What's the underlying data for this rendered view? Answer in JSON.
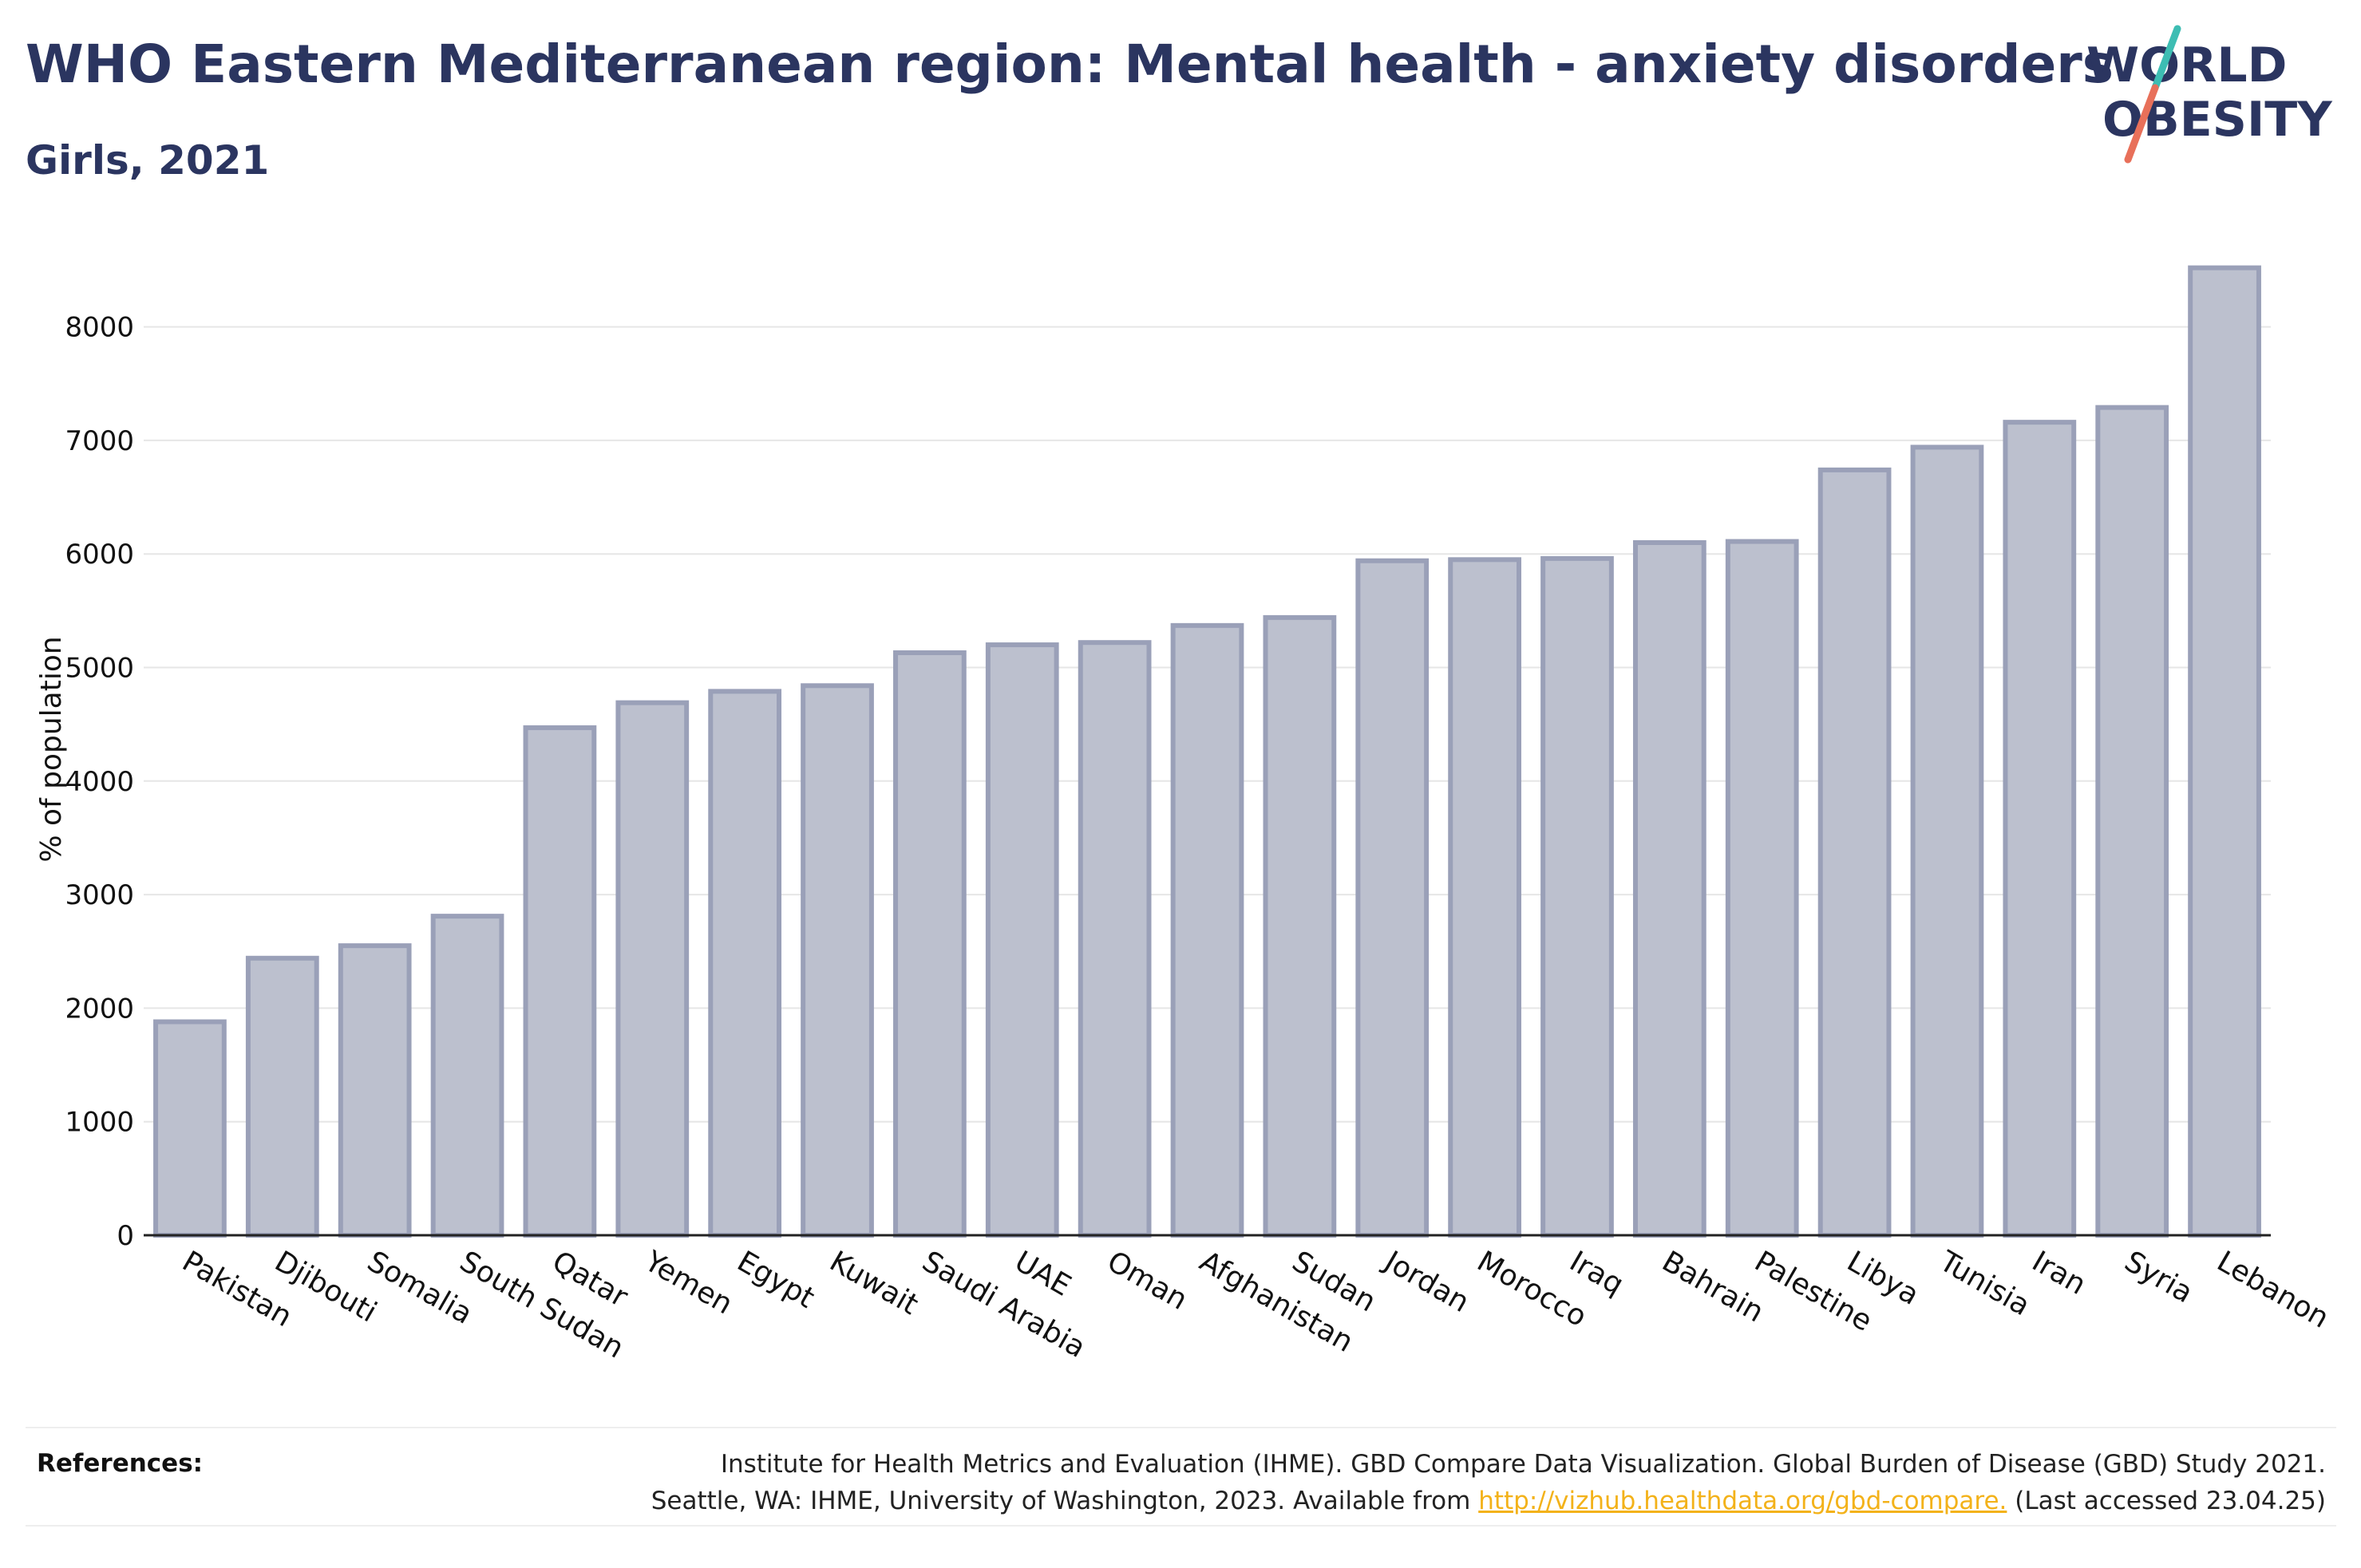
{
  "header": {
    "title": "WHO Eastern Mediterranean region: Mental health - anxiety disorders",
    "subtitle": "Girls, 2021"
  },
  "logo": {
    "line1": "WORLD",
    "line2": "OBESITY",
    "text_color": "#2b3560",
    "slash_top_color": "#3dbdb3",
    "slash_bottom_color": "#e8705a"
  },
  "chart_data": {
    "type": "bar",
    "ylabel": "% of population",
    "ylim": [
      0,
      8700
    ],
    "yticks": [
      0,
      1000,
      2000,
      3000,
      4000,
      5000,
      6000,
      7000,
      8000
    ],
    "grid": true,
    "bar_fill": "#bcc0ce",
    "bar_stroke": "#9aa0b8",
    "categories": [
      "Pakistan",
      "Djibouti",
      "Somalia",
      "South Sudan",
      "Qatar",
      "Yemen",
      "Egypt",
      "Kuwait",
      "Saudi Arabia",
      "UAE",
      "Oman",
      "Afghanistan",
      "Sudan",
      "Jordan",
      "Morocco",
      "Iraq",
      "Bahrain",
      "Palestine",
      "Libya",
      "Tunisia",
      "Iran",
      "Syria",
      "Lebanon"
    ],
    "values": [
      1880,
      2440,
      2550,
      2810,
      4470,
      4690,
      4790,
      4840,
      5130,
      5200,
      5220,
      5370,
      5440,
      5940,
      5950,
      5960,
      6100,
      6110,
      6740,
      6940,
      7160,
      7290,
      8520
    ]
  },
  "references": {
    "label": "References:",
    "line1": "Institute for Health Metrics and Evaluation (IHME). GBD Compare Data Visualization. Global Burden of Disease (GBD) Study 2021.",
    "line2_prefix": "Seattle, WA: IHME, University of Washington, 2023. Available from ",
    "link_text": "http://vizhub.healthdata.org/gbd-compare.",
    "line2_suffix": " (Last accessed 23.04.25)"
  }
}
